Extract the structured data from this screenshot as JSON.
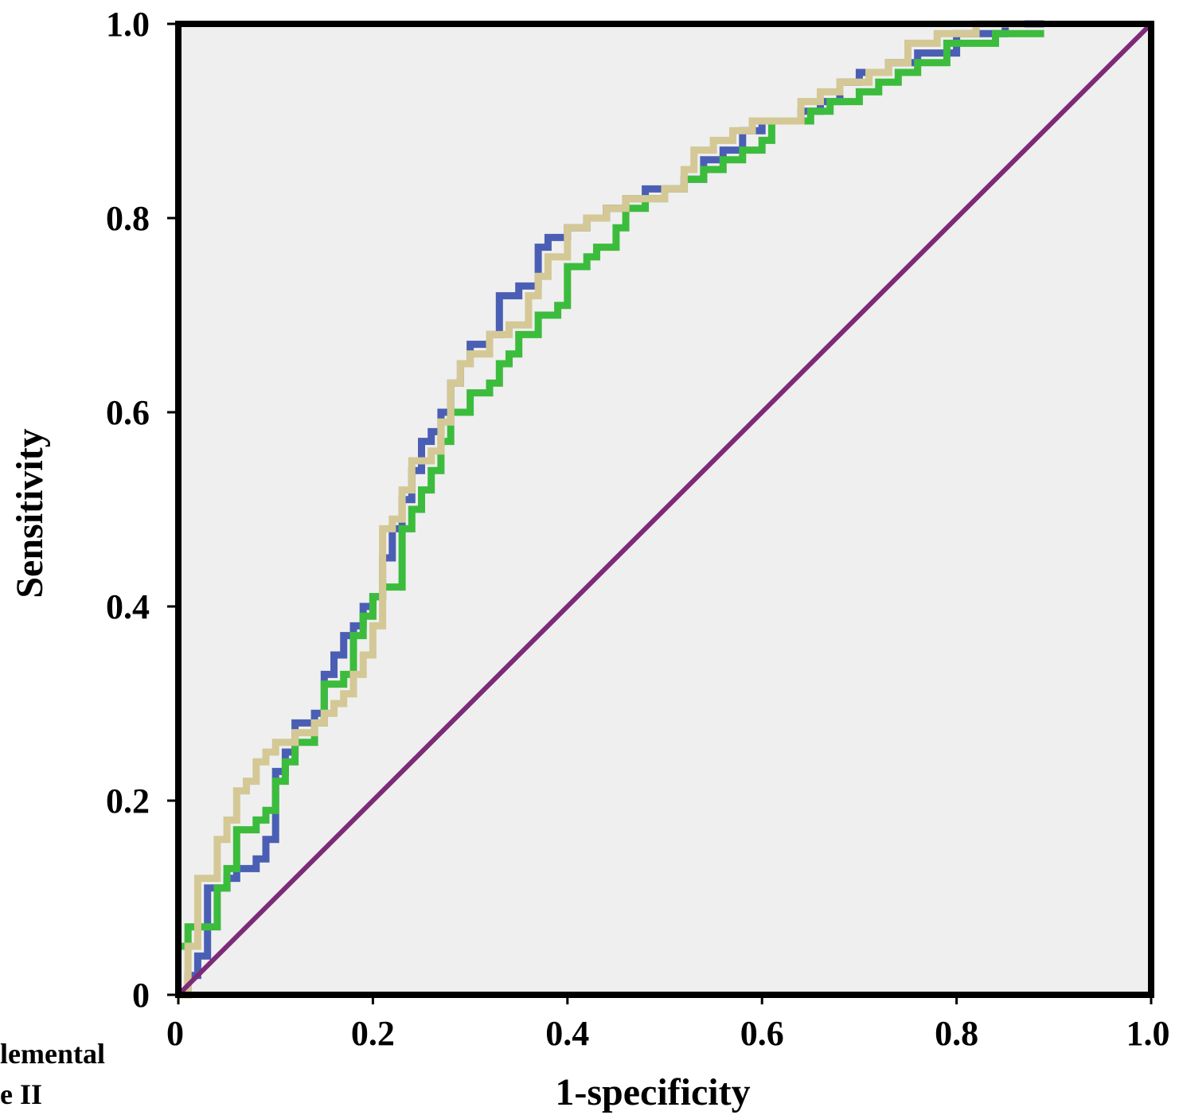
{
  "chart_data": {
    "type": "line",
    "xlabel": "1-specificity",
    "ylabel": "Sensitivity",
    "xlim": [
      0,
      1.0
    ],
    "ylim": [
      0,
      1.0
    ],
    "x_ticks": [
      "0",
      "0.2",
      "0.4",
      "0.6",
      "0.8",
      "1.0"
    ],
    "y_ticks": [
      "0",
      "0.2",
      "0.4",
      "0.6",
      "0.8",
      "1.0"
    ],
    "grid": false,
    "legend": "none",
    "colors": {
      "plot_background": "#efefef",
      "frame": "#000000",
      "blue": "#4a5fb4",
      "green": "#3cbc3c",
      "tan": "#d4c896",
      "reference": "#7d2a78"
    },
    "series": [
      {
        "color": "#4a5fb4",
        "points": [
          [
            0,
            0
          ],
          [
            0.01,
            0.02
          ],
          [
            0.02,
            0.04
          ],
          [
            0.03,
            0.11
          ],
          [
            0.05,
            0.12
          ],
          [
            0.06,
            0.13
          ],
          [
            0.08,
            0.14
          ],
          [
            0.09,
            0.16
          ],
          [
            0.1,
            0.23
          ],
          [
            0.11,
            0.25
          ],
          [
            0.12,
            0.28
          ],
          [
            0.14,
            0.29
          ],
          [
            0.15,
            0.33
          ],
          [
            0.16,
            0.35
          ],
          [
            0.17,
            0.37
          ],
          [
            0.18,
            0.38
          ],
          [
            0.19,
            0.4
          ],
          [
            0.2,
            0.41
          ],
          [
            0.21,
            0.45
          ],
          [
            0.22,
            0.48
          ],
          [
            0.23,
            0.51
          ],
          [
            0.24,
            0.54
          ],
          [
            0.25,
            0.57
          ],
          [
            0.26,
            0.58
          ],
          [
            0.27,
            0.6
          ],
          [
            0.28,
            0.63
          ],
          [
            0.29,
            0.65
          ],
          [
            0.3,
            0.67
          ],
          [
            0.32,
            0.68
          ],
          [
            0.33,
            0.72
          ],
          [
            0.35,
            0.73
          ],
          [
            0.37,
            0.77
          ],
          [
            0.38,
            0.78
          ],
          [
            0.4,
            0.79
          ],
          [
            0.42,
            0.8
          ],
          [
            0.44,
            0.81
          ],
          [
            0.46,
            0.82
          ],
          [
            0.48,
            0.83
          ],
          [
            0.5,
            0.83
          ],
          [
            0.52,
            0.84
          ],
          [
            0.54,
            0.86
          ],
          [
            0.56,
            0.87
          ],
          [
            0.58,
            0.89
          ],
          [
            0.6,
            0.9
          ],
          [
            0.62,
            0.9
          ],
          [
            0.64,
            0.91
          ],
          [
            0.66,
            0.92
          ],
          [
            0.68,
            0.94
          ],
          [
            0.7,
            0.95
          ],
          [
            0.73,
            0.96
          ],
          [
            0.76,
            0.97
          ],
          [
            0.8,
            0.99
          ],
          [
            0.85,
            1.0
          ],
          [
            0.89,
            1.0
          ]
        ]
      },
      {
        "color": "#3cbc3c",
        "points": [
          [
            0,
            0.05
          ],
          [
            0.01,
            0.07
          ],
          [
            0.03,
            0.07
          ],
          [
            0.04,
            0.11
          ],
          [
            0.05,
            0.13
          ],
          [
            0.06,
            0.17
          ],
          [
            0.08,
            0.18
          ],
          [
            0.09,
            0.19
          ],
          [
            0.1,
            0.22
          ],
          [
            0.11,
            0.24
          ],
          [
            0.12,
            0.26
          ],
          [
            0.14,
            0.28
          ],
          [
            0.15,
            0.32
          ],
          [
            0.17,
            0.33
          ],
          [
            0.18,
            0.37
          ],
          [
            0.19,
            0.39
          ],
          [
            0.2,
            0.41
          ],
          [
            0.21,
            0.42
          ],
          [
            0.23,
            0.48
          ],
          [
            0.24,
            0.5
          ],
          [
            0.25,
            0.52
          ],
          [
            0.26,
            0.54
          ],
          [
            0.27,
            0.57
          ],
          [
            0.28,
            0.6
          ],
          [
            0.3,
            0.62
          ],
          [
            0.32,
            0.63
          ],
          [
            0.33,
            0.65
          ],
          [
            0.34,
            0.66
          ],
          [
            0.35,
            0.68
          ],
          [
            0.37,
            0.7
          ],
          [
            0.39,
            0.71
          ],
          [
            0.4,
            0.75
          ],
          [
            0.42,
            0.76
          ],
          [
            0.43,
            0.77
          ],
          [
            0.45,
            0.79
          ],
          [
            0.46,
            0.81
          ],
          [
            0.48,
            0.82
          ],
          [
            0.5,
            0.83
          ],
          [
            0.52,
            0.84
          ],
          [
            0.54,
            0.85
          ],
          [
            0.56,
            0.86
          ],
          [
            0.58,
            0.87
          ],
          [
            0.6,
            0.88
          ],
          [
            0.61,
            0.9
          ],
          [
            0.63,
            0.9
          ],
          [
            0.65,
            0.91
          ],
          [
            0.67,
            0.92
          ],
          [
            0.7,
            0.93
          ],
          [
            0.72,
            0.94
          ],
          [
            0.74,
            0.95
          ],
          [
            0.76,
            0.96
          ],
          [
            0.79,
            0.98
          ],
          [
            0.84,
            0.99
          ],
          [
            0.89,
            0.99
          ]
        ]
      },
      {
        "color": "#d4c896",
        "points": [
          [
            0,
            0
          ],
          [
            0.01,
            0.05
          ],
          [
            0.02,
            0.12
          ],
          [
            0.04,
            0.16
          ],
          [
            0.05,
            0.18
          ],
          [
            0.06,
            0.21
          ],
          [
            0.07,
            0.22
          ],
          [
            0.08,
            0.24
          ],
          [
            0.09,
            0.25
          ],
          [
            0.1,
            0.26
          ],
          [
            0.12,
            0.27
          ],
          [
            0.14,
            0.28
          ],
          [
            0.15,
            0.29
          ],
          [
            0.16,
            0.3
          ],
          [
            0.17,
            0.31
          ],
          [
            0.18,
            0.33
          ],
          [
            0.19,
            0.35
          ],
          [
            0.2,
            0.38
          ],
          [
            0.21,
            0.48
          ],
          [
            0.22,
            0.49
          ],
          [
            0.23,
            0.52
          ],
          [
            0.24,
            0.55
          ],
          [
            0.26,
            0.56
          ],
          [
            0.27,
            0.59
          ],
          [
            0.28,
            0.63
          ],
          [
            0.29,
            0.65
          ],
          [
            0.3,
            0.66
          ],
          [
            0.32,
            0.68
          ],
          [
            0.34,
            0.69
          ],
          [
            0.36,
            0.72
          ],
          [
            0.37,
            0.74
          ],
          [
            0.38,
            0.76
          ],
          [
            0.4,
            0.79
          ],
          [
            0.42,
            0.8
          ],
          [
            0.44,
            0.81
          ],
          [
            0.46,
            0.82
          ],
          [
            0.48,
            0.82
          ],
          [
            0.5,
            0.83
          ],
          [
            0.52,
            0.85
          ],
          [
            0.53,
            0.87
          ],
          [
            0.55,
            0.88
          ],
          [
            0.57,
            0.89
          ],
          [
            0.59,
            0.9
          ],
          [
            0.62,
            0.9
          ],
          [
            0.64,
            0.92
          ],
          [
            0.66,
            0.93
          ],
          [
            0.68,
            0.94
          ],
          [
            0.71,
            0.95
          ],
          [
            0.73,
            0.96
          ],
          [
            0.75,
            0.98
          ],
          [
            0.78,
            0.99
          ],
          [
            0.82,
            1.0
          ],
          [
            0.87,
            1.0
          ]
        ]
      },
      {
        "color": "#7d2a78",
        "points": [
          [
            0,
            0
          ],
          [
            1,
            1
          ]
        ]
      }
    ]
  },
  "caption": {
    "line1": "lemental",
    "line2": "e II"
  }
}
